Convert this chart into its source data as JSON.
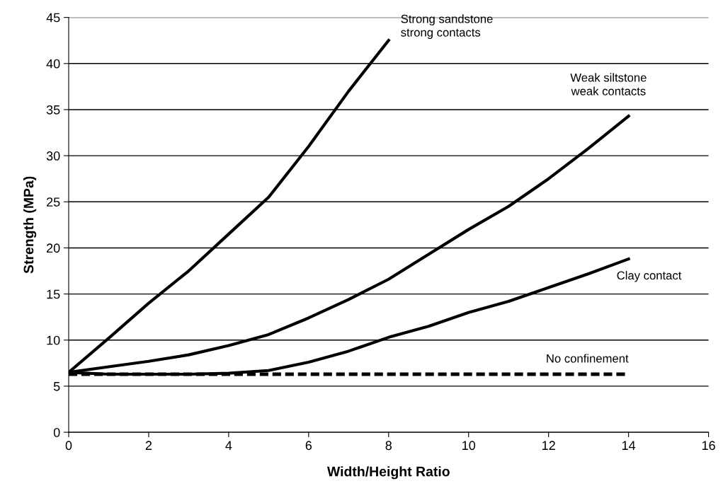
{
  "chart_data": {
    "type": "line",
    "xlabel": "Width/Height Ratio",
    "ylabel": "Strength (MPa)",
    "xlim": [
      0,
      16
    ],
    "xticks": [
      0,
      2,
      4,
      6,
      8,
      10,
      12,
      14,
      16
    ],
    "ylim": [
      0,
      45
    ],
    "yticks": [
      0,
      5,
      10,
      15,
      20,
      25,
      30,
      35,
      40,
      45
    ],
    "grid": "y",
    "legend": false,
    "marker": "none",
    "series": [
      {
        "name": "Strong sandstone\nstrong contacts",
        "color": "#000000",
        "line_style": "solid",
        "x": [
          0,
          1,
          2,
          3,
          4,
          5,
          6,
          7,
          8
        ],
        "values": [
          6.5,
          10.2,
          14,
          17.5,
          21.5,
          25.5,
          31,
          37,
          42.5
        ]
      },
      {
        "name": "Weak siltstone\nweak contacts",
        "color": "#000000",
        "line_style": "solid",
        "x": [
          0,
          1,
          2,
          3,
          4,
          5,
          6,
          7,
          8,
          9,
          10,
          11,
          12,
          13,
          14
        ],
        "values": [
          6.5,
          7.1,
          7.7,
          8.4,
          9.4,
          10.6,
          12.4,
          14.4,
          16.6,
          19.3,
          22,
          24.5,
          27.5,
          30.8,
          34.3
        ]
      },
      {
        "name": "Clay contact",
        "color": "#000000",
        "line_style": "solid",
        "x": [
          0,
          1,
          2,
          3,
          4,
          5,
          6,
          7,
          8,
          9,
          10,
          11,
          12,
          13,
          14
        ],
        "values": [
          6.5,
          6.3,
          6.3,
          6.3,
          6.4,
          6.7,
          7.6,
          8.8,
          10.3,
          11.5,
          13,
          14.2,
          15.7,
          17.2,
          18.8
        ]
      },
      {
        "name": "No confinement",
        "color": "#000000",
        "line_style": "dashed",
        "x": [
          0,
          14
        ],
        "values": [
          6.3,
          6.3
        ]
      }
    ]
  }
}
